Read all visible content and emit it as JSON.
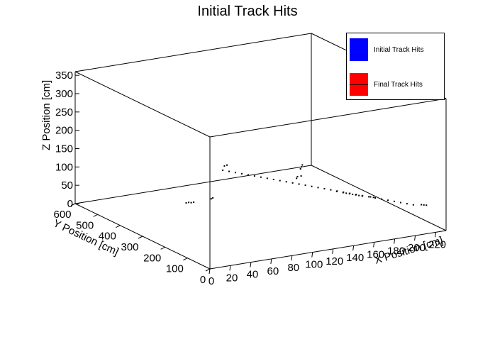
{
  "chart_data": {
    "type": "scatter",
    "title": "Initial Track Hits",
    "xlabel": "X Position [cm]",
    "ylabel": "Y Position [cm]",
    "zlabel": "Z Position [cm]",
    "xlim": [
      0,
      230
    ],
    "ylim": [
      0,
      600
    ],
    "zlim": [
      0,
      360
    ],
    "x_ticks": [
      "0",
      "20",
      "40",
      "60",
      "80",
      "100",
      "120",
      "140",
      "160",
      "180",
      "200",
      "220"
    ],
    "y_ticks": [
      "0",
      "100",
      "200",
      "300",
      "400",
      "500",
      "600"
    ],
    "z_ticks": [
      "0",
      "50",
      "100",
      "150",
      "200",
      "250",
      "300",
      "350"
    ],
    "legend": [
      {
        "name": "Initial Track Hits",
        "color": "#0000ff"
      },
      {
        "name": "Final Track Hits",
        "color": "#ff0000"
      }
    ],
    "series": [
      {
        "name": "Initial Track Hits",
        "color": "#000000",
        "points": [
          {
            "x": 100,
            "y": 400,
            "z": 105
          },
          {
            "x": 104,
            "y": 390,
            "z": 103
          },
          {
            "x": 108,
            "y": 380,
            "z": 101
          },
          {
            "x": 112,
            "y": 370,
            "z": 99
          },
          {
            "x": 116,
            "y": 360,
            "z": 97
          },
          {
            "x": 120,
            "y": 350,
            "z": 95
          },
          {
            "x": 124,
            "y": 340,
            "z": 93
          },
          {
            "x": 128,
            "y": 330,
            "z": 91
          },
          {
            "x": 132,
            "y": 320,
            "z": 89
          },
          {
            "x": 136,
            "y": 310,
            "z": 87
          },
          {
            "x": 140,
            "y": 300,
            "z": 85
          },
          {
            "x": 144,
            "y": 290,
            "z": 83
          },
          {
            "x": 148,
            "y": 280,
            "z": 81
          },
          {
            "x": 152,
            "y": 270,
            "z": 79
          },
          {
            "x": 156,
            "y": 260,
            "z": 77
          },
          {
            "x": 160,
            "y": 250,
            "z": 75
          },
          {
            "x": 164,
            "y": 240,
            "z": 73
          },
          {
            "x": 168,
            "y": 230,
            "z": 71
          },
          {
            "x": 172,
            "y": 220,
            "z": 69
          },
          {
            "x": 176,
            "y": 210,
            "z": 67
          },
          {
            "x": 180,
            "y": 200,
            "z": 65
          },
          {
            "x": 184,
            "y": 190,
            "z": 63
          },
          {
            "x": 188,
            "y": 180,
            "z": 61
          },
          {
            "x": 192,
            "y": 170,
            "z": 59
          },
          {
            "x": 196,
            "y": 160,
            "z": 57
          },
          {
            "x": 200,
            "y": 150,
            "z": 55
          },
          {
            "x": 204,
            "y": 140,
            "z": 53
          },
          {
            "x": 208,
            "y": 130,
            "z": 51
          },
          {
            "x": 212,
            "y": 120,
            "z": 49
          },
          {
            "x": 216,
            "y": 110,
            "z": 47
          },
          {
            "x": 220,
            "y": 100,
            "z": 45
          },
          {
            "x": 150,
            "y": 300,
            "z": 90
          },
          {
            "x": 152,
            "y": 305,
            "z": 92
          },
          {
            "x": 154,
            "y": 298,
            "z": 95
          },
          {
            "x": 156,
            "y": 310,
            "z": 110
          },
          {
            "x": 158,
            "y": 315,
            "z": 113
          },
          {
            "x": 160,
            "y": 320,
            "z": 116
          },
          {
            "x": 180,
            "y": 230,
            "z": 58
          },
          {
            "x": 182,
            "y": 225,
            "z": 57
          },
          {
            "x": 184,
            "y": 220,
            "z": 56
          },
          {
            "x": 186,
            "y": 215,
            "z": 55
          },
          {
            "x": 188,
            "y": 210,
            "z": 54
          },
          {
            "x": 176,
            "y": 240,
            "z": 60
          },
          {
            "x": 190,
            "y": 205,
            "z": 53
          },
          {
            "x": 192,
            "y": 200,
            "z": 52
          },
          {
            "x": 60,
            "y": 380,
            "z": 40
          },
          {
            "x": 62,
            "y": 378,
            "z": 41
          },
          {
            "x": 64,
            "y": 376,
            "z": 40
          },
          {
            "x": 66,
            "y": 374,
            "z": 41
          },
          {
            "x": 80,
            "y": 360,
            "z": 48
          },
          {
            "x": 82,
            "y": 362,
            "z": 49
          },
          {
            "x": 198,
            "y": 190,
            "z": 50
          },
          {
            "x": 200,
            "y": 186,
            "z": 49
          },
          {
            "x": 106,
            "y": 420,
            "z": 108
          },
          {
            "x": 108,
            "y": 418,
            "z": 110
          },
          {
            "x": 230,
            "y": 110,
            "z": 38
          },
          {
            "x": 232,
            "y": 108,
            "z": 37
          },
          {
            "x": 234,
            "y": 106,
            "z": 36
          }
        ]
      }
    ]
  }
}
